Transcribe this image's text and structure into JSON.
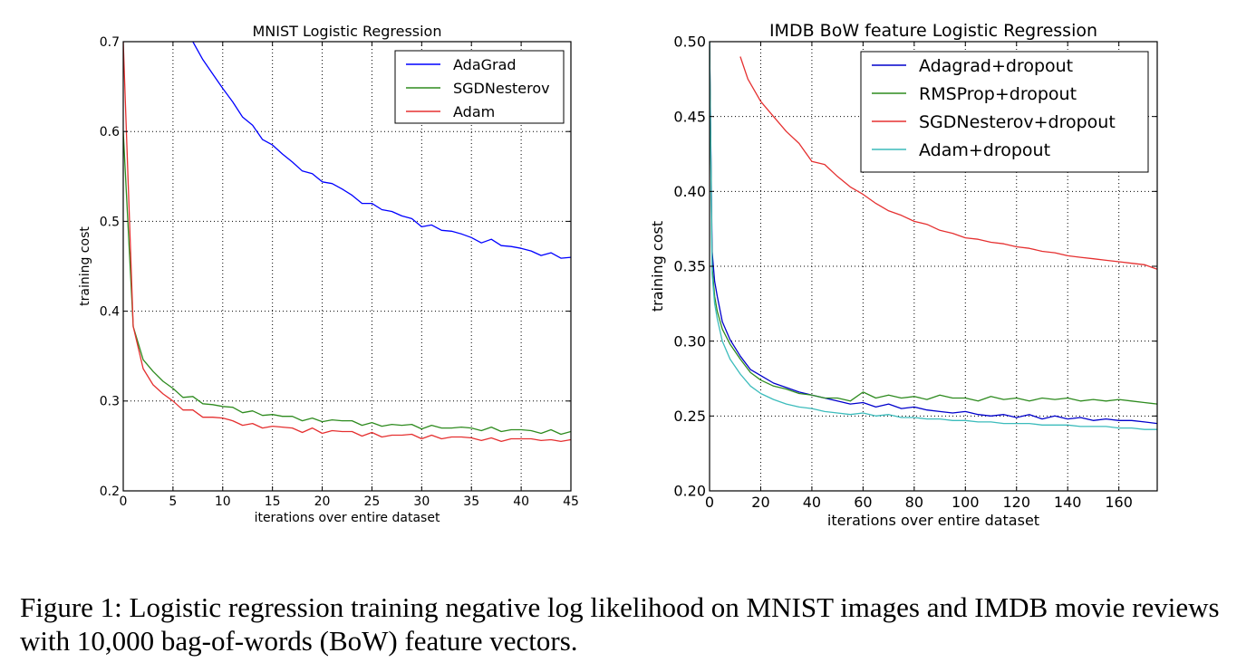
{
  "figure": {
    "caption": "Figure 1: Logistic regression training negative log likelihood on MNIST images and IMDB movie reviews with 10,000 bag-of-words (BoW) feature vectors."
  },
  "chart_data": [
    {
      "type": "line",
      "title": "MNIST Logistic Regression",
      "xlabel": "iterations over entire dataset",
      "ylabel": "training cost",
      "xlim": [
        0,
        45
      ],
      "ylim": [
        0.2,
        0.7
      ],
      "xticks": [
        0,
        5,
        10,
        15,
        20,
        25,
        30,
        35,
        40,
        45
      ],
      "yticks": [
        0.2,
        0.3,
        0.4,
        0.5,
        0.6,
        0.7
      ],
      "xtick_labels": [
        "0",
        "5",
        "10",
        "15",
        "20",
        "25",
        "30",
        "35",
        "40",
        "45"
      ],
      "ytick_labels": [
        "0.2",
        "0.3",
        "0.4",
        "0.5",
        "0.6",
        "0.7"
      ],
      "grid": true,
      "legend": "top-right",
      "series": [
        {
          "name": "AdaGrad",
          "color": "#0000ff",
          "x": [
            7,
            8,
            9,
            10,
            11,
            12,
            13,
            14,
            15,
            16,
            17,
            18,
            19,
            20,
            21,
            22,
            23,
            24,
            25,
            26,
            27,
            28,
            29,
            30,
            31,
            32,
            33,
            34,
            35,
            36,
            37,
            38,
            39,
            40,
            41,
            42,
            43,
            44,
            45
          ],
          "y": [
            0.7,
            0.68,
            0.664,
            0.648,
            0.633,
            0.616,
            0.607,
            0.591,
            0.585,
            0.575,
            0.566,
            0.556,
            0.553,
            0.544,
            0.542,
            0.536,
            0.529,
            0.52,
            0.52,
            0.513,
            0.511,
            0.506,
            0.503,
            0.494,
            0.496,
            0.49,
            0.489,
            0.486,
            0.482,
            0.476,
            0.48,
            0.473,
            0.472,
            0.47,
            0.467,
            0.462,
            0.465,
            0.459,
            0.46
          ]
        },
        {
          "name": "SGDNesterov",
          "color": "#2e8b1f",
          "x": [
            0,
            1,
            2,
            3,
            4,
            5,
            6,
            7,
            8,
            9,
            10,
            11,
            12,
            13,
            14,
            15,
            16,
            17,
            18,
            19,
            20,
            21,
            22,
            23,
            24,
            25,
            26,
            27,
            28,
            29,
            30,
            31,
            32,
            33,
            34,
            35,
            36,
            37,
            38,
            39,
            40,
            41,
            42,
            43,
            44,
            45
          ],
          "y": [
            0.6,
            0.383,
            0.346,
            0.333,
            0.322,
            0.314,
            0.304,
            0.305,
            0.297,
            0.296,
            0.294,
            0.293,
            0.287,
            0.289,
            0.284,
            0.285,
            0.283,
            0.283,
            0.278,
            0.281,
            0.277,
            0.279,
            0.278,
            0.278,
            0.273,
            0.276,
            0.272,
            0.274,
            0.273,
            0.274,
            0.269,
            0.273,
            0.27,
            0.27,
            0.271,
            0.27,
            0.267,
            0.271,
            0.266,
            0.268,
            0.268,
            0.267,
            0.264,
            0.268,
            0.263,
            0.266
          ]
        },
        {
          "name": "Adam",
          "color": "#e53030",
          "x": [
            0,
            1,
            2,
            3,
            4,
            5,
            6,
            7,
            8,
            9,
            10,
            11,
            12,
            13,
            14,
            15,
            16,
            17,
            18,
            19,
            20,
            21,
            22,
            23,
            24,
            25,
            26,
            27,
            28,
            29,
            30,
            31,
            32,
            33,
            34,
            35,
            36,
            37,
            38,
            39,
            40,
            41,
            42,
            43,
            44,
            45
          ],
          "y": [
            0.7,
            0.383,
            0.336,
            0.318,
            0.308,
            0.3,
            0.29,
            0.29,
            0.282,
            0.282,
            0.281,
            0.278,
            0.273,
            0.275,
            0.27,
            0.272,
            0.271,
            0.27,
            0.265,
            0.27,
            0.264,
            0.267,
            0.266,
            0.266,
            0.261,
            0.265,
            0.26,
            0.262,
            0.262,
            0.263,
            0.258,
            0.262,
            0.258,
            0.26,
            0.26,
            0.259,
            0.256,
            0.259,
            0.255,
            0.258,
            0.258,
            0.258,
            0.256,
            0.257,
            0.255,
            0.257
          ]
        }
      ]
    },
    {
      "type": "line",
      "title": "IMDB BoW feature Logistic Regression",
      "xlabel": "iterations over entire dataset",
      "ylabel": "training cost",
      "xlim": [
        0,
        175
      ],
      "ylim": [
        0.2,
        0.5
      ],
      "xticks": [
        0,
        20,
        40,
        60,
        80,
        100,
        120,
        140,
        160
      ],
      "yticks": [
        0.2,
        0.25,
        0.3,
        0.35,
        0.4,
        0.45,
        0.5
      ],
      "xtick_labels": [
        "0",
        "20",
        "40",
        "60",
        "80",
        "100",
        "120",
        "140",
        "160"
      ],
      "ytick_labels": [
        "0.20",
        "0.25",
        "0.30",
        "0.35",
        "0.40",
        "0.45",
        "0.50"
      ],
      "grid": true,
      "legend": "top-right",
      "series": [
        {
          "name": "Adagrad+dropout",
          "color": "#0000cc",
          "x": [
            0,
            1,
            2,
            3,
            5,
            8,
            12,
            16,
            20,
            25,
            30,
            35,
            40,
            45,
            50,
            55,
            60,
            65,
            70,
            75,
            80,
            85,
            90,
            95,
            100,
            105,
            110,
            115,
            120,
            125,
            130,
            135,
            140,
            145,
            150,
            155,
            160,
            165,
            170,
            175
          ],
          "y": [
            0.5,
            0.36,
            0.34,
            0.33,
            0.313,
            0.301,
            0.29,
            0.281,
            0.277,
            0.272,
            0.269,
            0.266,
            0.264,
            0.262,
            0.26,
            0.258,
            0.259,
            0.256,
            0.258,
            0.255,
            0.256,
            0.254,
            0.253,
            0.252,
            0.253,
            0.251,
            0.25,
            0.251,
            0.249,
            0.251,
            0.248,
            0.25,
            0.248,
            0.249,
            0.247,
            0.248,
            0.247,
            0.247,
            0.246,
            0.245
          ]
        },
        {
          "name": "RMSProp+dropout",
          "color": "#2e8b1f",
          "x": [
            0,
            1,
            2,
            3,
            5,
            8,
            12,
            16,
            20,
            25,
            30,
            35,
            40,
            45,
            50,
            55,
            60,
            65,
            70,
            75,
            80,
            85,
            90,
            95,
            100,
            105,
            110,
            115,
            120,
            125,
            130,
            135,
            140,
            145,
            150,
            155,
            160,
            165,
            170,
            175
          ],
          "y": [
            0.5,
            0.35,
            0.33,
            0.32,
            0.308,
            0.298,
            0.288,
            0.279,
            0.274,
            0.27,
            0.268,
            0.265,
            0.264,
            0.262,
            0.262,
            0.26,
            0.266,
            0.262,
            0.264,
            0.262,
            0.263,
            0.261,
            0.264,
            0.262,
            0.262,
            0.26,
            0.263,
            0.261,
            0.262,
            0.26,
            0.262,
            0.261,
            0.262,
            0.26,
            0.261,
            0.26,
            0.261,
            0.26,
            0.259,
            0.258
          ]
        },
        {
          "name": "SGDNesterov+dropout",
          "color": "#e53030",
          "x": [
            12,
            15,
            20,
            25,
            30,
            35,
            40,
            45,
            50,
            55,
            60,
            65,
            70,
            75,
            80,
            85,
            90,
            95,
            100,
            105,
            110,
            115,
            120,
            125,
            130,
            135,
            140,
            145,
            150,
            155,
            160,
            165,
            170,
            175
          ],
          "y": [
            0.49,
            0.475,
            0.46,
            0.45,
            0.44,
            0.432,
            0.42,
            0.418,
            0.41,
            0.403,
            0.398,
            0.392,
            0.387,
            0.384,
            0.38,
            0.378,
            0.374,
            0.372,
            0.369,
            0.368,
            0.366,
            0.365,
            0.363,
            0.362,
            0.36,
            0.359,
            0.357,
            0.356,
            0.355,
            0.354,
            0.353,
            0.352,
            0.351,
            0.348
          ]
        },
        {
          "name": "Adam+dropout",
          "color": "#3cbcbc",
          "x": [
            0,
            1,
            2,
            3,
            5,
            8,
            12,
            16,
            20,
            25,
            30,
            35,
            40,
            45,
            50,
            55,
            60,
            65,
            70,
            75,
            80,
            85,
            90,
            95,
            100,
            105,
            110,
            115,
            120,
            125,
            130,
            135,
            140,
            145,
            150,
            155,
            160,
            165,
            170,
            175
          ],
          "y": [
            0.5,
            0.345,
            0.325,
            0.315,
            0.3,
            0.288,
            0.278,
            0.27,
            0.265,
            0.261,
            0.258,
            0.256,
            0.255,
            0.253,
            0.252,
            0.251,
            0.252,
            0.25,
            0.251,
            0.249,
            0.249,
            0.248,
            0.248,
            0.247,
            0.247,
            0.246,
            0.246,
            0.245,
            0.245,
            0.245,
            0.244,
            0.244,
            0.244,
            0.243,
            0.243,
            0.243,
            0.242,
            0.242,
            0.241,
            0.241
          ]
        }
      ]
    }
  ]
}
